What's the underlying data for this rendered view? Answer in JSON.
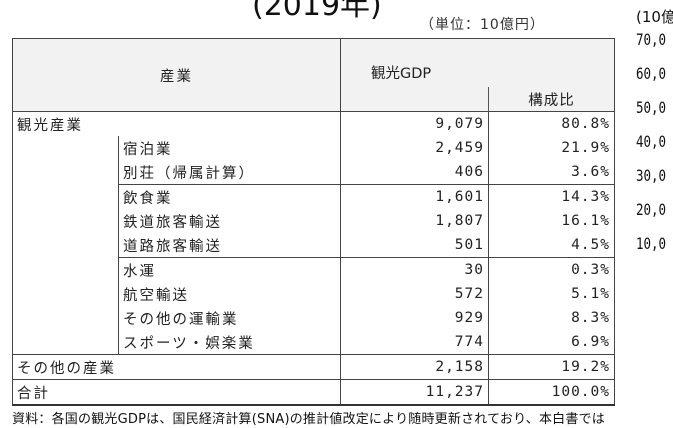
{
  "title_fragment": "(2019年)",
  "unit": "（単位：10億円）",
  "side_axis": {
    "unit": "(10億",
    "ticks": [
      "70,0",
      "60,0",
      "50,0",
      "40,0",
      "30,0",
      "20,0",
      "10,0"
    ]
  },
  "table": {
    "header_industry": "産業",
    "header_gdp": "観光GDP",
    "header_ratio": "構成比",
    "rows": [
      {
        "label": "観光産業",
        "gdp": "9,079",
        "ratio": "80.8%",
        "level": 1
      },
      {
        "label": "宿泊業",
        "gdp": "2,459",
        "ratio": "21.9%",
        "level": 2
      },
      {
        "label": "別荘（帰属計算）",
        "gdp": "406",
        "ratio": "3.6%",
        "level": 2
      },
      {
        "label": "飲食業",
        "gdp": "1,601",
        "ratio": "14.3%",
        "level": 2
      },
      {
        "label": "鉄道旅客輸送",
        "gdp": "1,807",
        "ratio": "16.1%",
        "level": 2
      },
      {
        "label": "道路旅客輸送",
        "gdp": "501",
        "ratio": "4.5%",
        "level": 2
      },
      {
        "label": "水運",
        "gdp": "30",
        "ratio": "0.3%",
        "level": 2
      },
      {
        "label": "航空輸送",
        "gdp": "572",
        "ratio": "5.1%",
        "level": 2
      },
      {
        "label": "その他の運輸業",
        "gdp": "929",
        "ratio": "8.3%",
        "level": 2
      },
      {
        "label": "スポーツ・娯楽業",
        "gdp": "774",
        "ratio": "6.9%",
        "level": 2
      },
      {
        "label": "その他の産業",
        "gdp": "2,158",
        "ratio": "19.2%",
        "level": 1
      },
      {
        "label": "合計",
        "gdp": "11,237",
        "ratio": "100.0%",
        "level": 1
      }
    ]
  },
  "footnote": "資料：各国の観光GDPは、国民経済計算(SNA)の推計値改定により随時更新されており、本白書では"
}
